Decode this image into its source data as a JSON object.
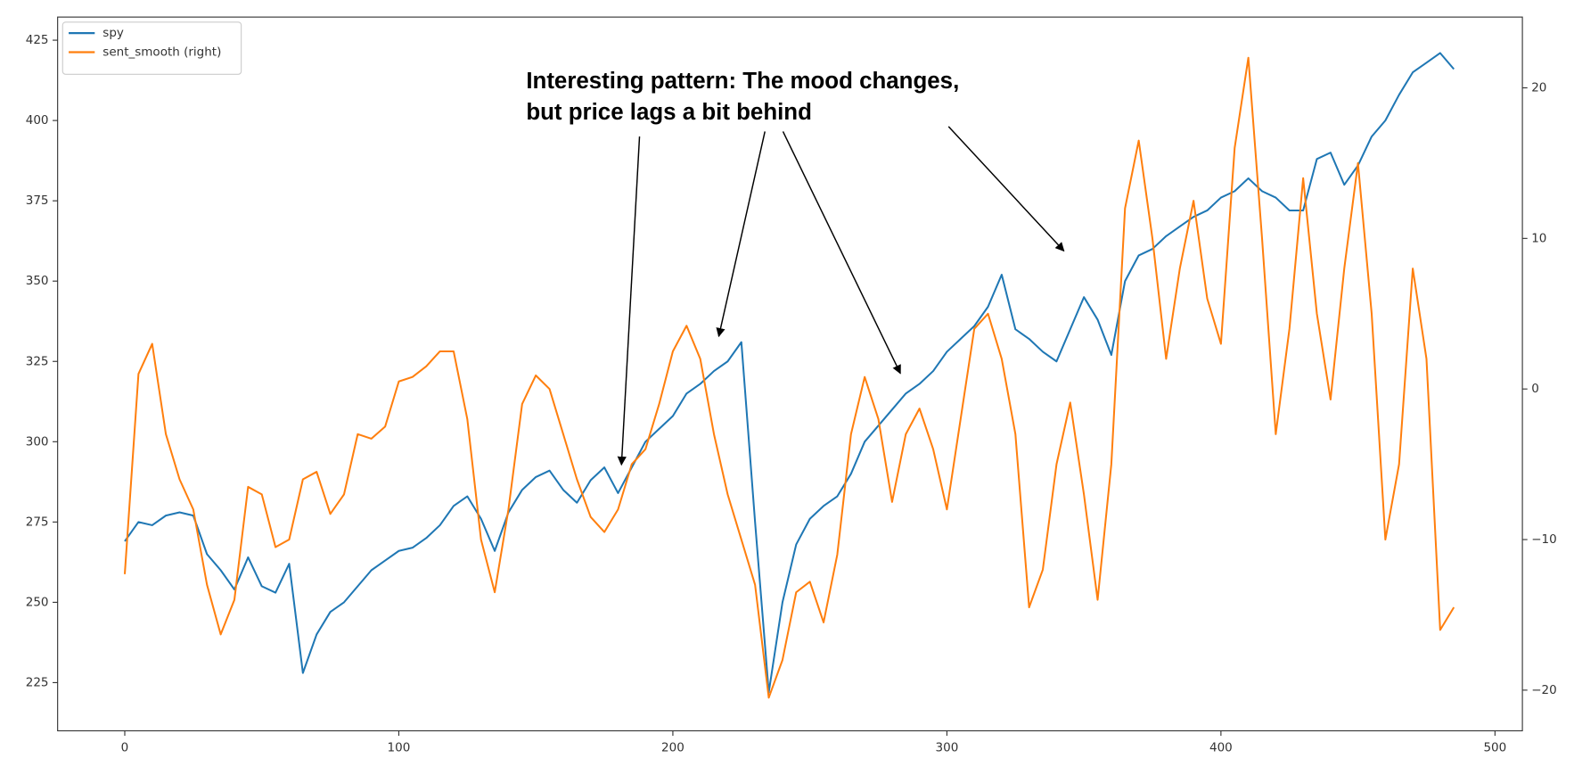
{
  "chart_data": {
    "type": "line",
    "annotation": [
      "Interesting pattern: The mood changes,",
      "but price lags a bit behind"
    ],
    "x": [
      0,
      5,
      10,
      15,
      20,
      25,
      30,
      35,
      40,
      45,
      50,
      55,
      60,
      65,
      70,
      75,
      80,
      85,
      90,
      95,
      100,
      105,
      110,
      115,
      120,
      125,
      130,
      135,
      140,
      145,
      150,
      155,
      160,
      165,
      170,
      175,
      180,
      185,
      190,
      195,
      200,
      205,
      210,
      215,
      220,
      225,
      230,
      235,
      240,
      245,
      250,
      255,
      260,
      265,
      270,
      275,
      280,
      285,
      290,
      295,
      300,
      305,
      310,
      315,
      320,
      325,
      330,
      335,
      340,
      345,
      350,
      355,
      360,
      365,
      370,
      375,
      380,
      385,
      390,
      395,
      400,
      405,
      410,
      415,
      420,
      425,
      430,
      435,
      440,
      445,
      450,
      455,
      460,
      465,
      470,
      475,
      480,
      485
    ],
    "series": [
      {
        "name": "spy",
        "color": "#1f77b4",
        "axis": "y",
        "values": [
          269,
          275,
          274,
          277,
          278,
          277,
          265,
          260,
          254,
          264,
          255,
          253,
          262,
          228,
          240,
          247,
          250,
          255,
          260,
          263,
          266,
          267,
          270,
          274,
          280,
          283,
          276,
          266,
          278,
          285,
          289,
          291,
          285,
          281,
          288,
          292,
          284,
          292,
          300,
          304,
          308,
          315,
          318,
          322,
          325,
          331,
          275,
          222,
          250,
          268,
          276,
          280,
          283,
          290,
          300,
          305,
          310,
          315,
          318,
          322,
          328,
          332,
          336,
          342,
          352,
          335,
          332,
          328,
          325,
          335,
          345,
          338,
          327,
          350,
          358,
          360,
          364,
          367,
          370,
          372,
          376,
          378,
          382,
          378,
          376,
          372,
          372,
          388,
          390,
          380,
          386,
          395,
          400,
          408,
          415,
          418,
          421,
          416
        ]
      },
      {
        "name": "sent_smooth (right)",
        "color": "#ff7f0e",
        "axis": "y2",
        "values": [
          -12.3,
          1,
          3,
          -3,
          -6,
          -8,
          -13,
          -16.3,
          -14,
          -6.5,
          -7,
          -10.5,
          -10,
          -6,
          -5.5,
          -8.3,
          -7,
          -3,
          -3.3,
          -2.5,
          0.5,
          0.8,
          1.5,
          2.5,
          2.5,
          -2,
          -10,
          -13.5,
          -8,
          -1,
          0.9,
          0,
          -3,
          -6,
          -8.5,
          -9.5,
          -8,
          -5,
          -4,
          -1,
          2.5,
          4.2,
          2,
          -3,
          -7,
          -10,
          -13,
          -20.5,
          -18,
          -13.5,
          -12.8,
          -15.5,
          -11,
          -3,
          0.8,
          -2,
          -7.5,
          -3,
          -1.3,
          -4,
          -8,
          -2,
          4,
          5,
          2,
          -3,
          -14.5,
          -12,
          -5,
          -0.9,
          -7,
          -14,
          -5,
          12,
          16.5,
          10,
          2,
          8,
          12.5,
          6,
          3,
          16,
          22,
          10,
          -3,
          4,
          14,
          5,
          -0.7,
          8,
          15,
          5,
          -10,
          -5,
          8,
          2,
          -16,
          -14.5
        ]
      }
    ],
    "xlim": [
      -24.5,
      510
    ],
    "xticks": [
      0,
      100,
      200,
      300,
      400,
      500
    ],
    "ylim": [
      210,
      432.2
    ],
    "yticks": [
      225,
      250,
      275,
      300,
      325,
      350,
      375,
      400,
      425
    ],
    "y2lim": [
      -22.7,
      24.7
    ],
    "y2ticks": [
      {
        "value": -20,
        "label": "−20"
      },
      {
        "value": -10,
        "label": "−10"
      },
      0,
      10,
      20
    ],
    "legend": "upper left"
  }
}
